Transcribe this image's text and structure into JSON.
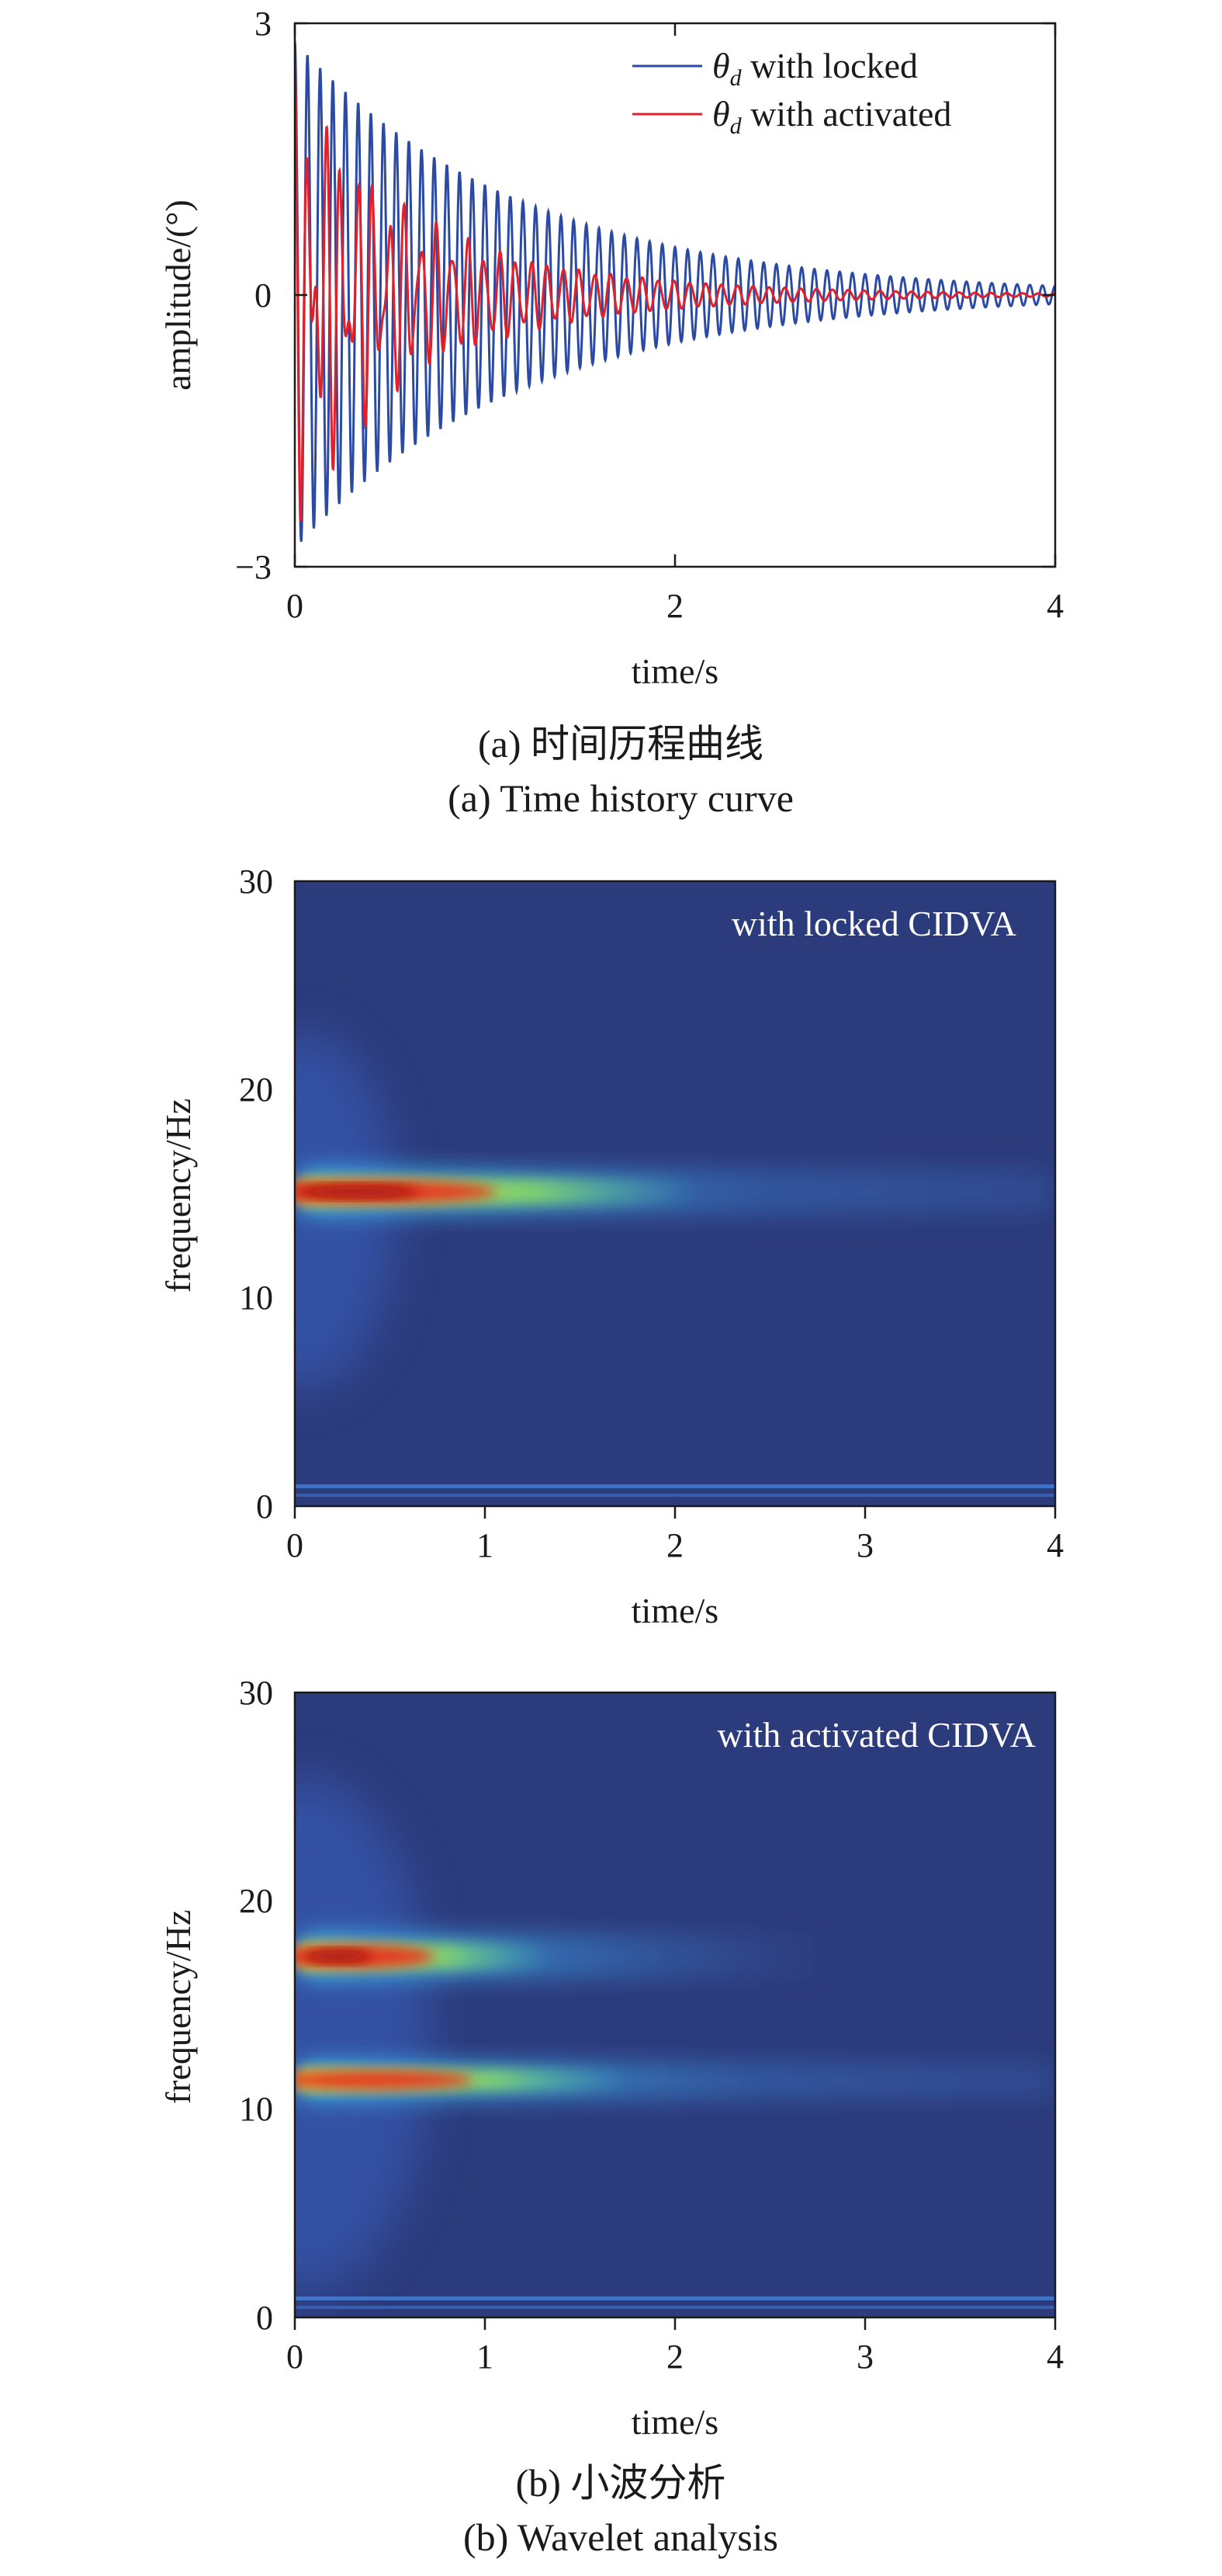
{
  "colors": {
    "locked": "#2b4aa3",
    "activated": "#e0202a",
    "heatmap_background": "#2c3b7c",
    "heatmap_colormap": "jet"
  },
  "captions": {
    "a_cn": "(a) 时间历程曲线",
    "a_en": "(a) Time history curve",
    "b_cn": "(b) 小波分析",
    "b_en": "(b) Wavelet analysis"
  },
  "chart_data": [
    {
      "type": "line",
      "xlabel": "time/s",
      "ylabel": "amplitude/(°)",
      "xlim": [
        0,
        4
      ],
      "ylim": [
        -3,
        3
      ],
      "xticks": [
        "0",
        "2",
        "4"
      ],
      "yticks": [
        "3",
        "0",
        "−3"
      ],
      "legend_position": "top-right",
      "series": [
        {
          "name": "θd with locked",
          "legend_symbol": "θ",
          "legend_sub": "d",
          "legend_text": " with locked",
          "color": "#2b4aa3",
          "frequency_hz": 15,
          "initial_amplitude_deg": 2.8,
          "final_amplitude_deg": 0.1
        },
        {
          "name": "θd with activated",
          "legend_symbol": "θ",
          "legend_sub": "d",
          "legend_text": " with activated",
          "color": "#e0202a",
          "frequency_components_hz": [
            12,
            17.5
          ],
          "initial_amplitude_deg": 2.8,
          "final_amplitude_deg": 0.05
        }
      ]
    },
    {
      "type": "heatmap",
      "label": "with locked CIDVA",
      "xlabel": "time/s",
      "ylabel": "frequency/Hz",
      "xlim": [
        0,
        4
      ],
      "ylim": [
        0,
        30
      ],
      "xticks": [
        "0",
        "1",
        "2",
        "3",
        "4"
      ],
      "yticks": [
        "30",
        "20",
        "10",
        "0"
      ],
      "ridges": [
        {
          "frequency_hz": 15,
          "peak_time_s": 0.4,
          "extends_to_s": 4
        }
      ]
    },
    {
      "type": "heatmap",
      "label": "with activated CIDVA",
      "xlabel": "time/s",
      "ylabel": "frequency/Hz",
      "xlim": [
        0,
        4
      ],
      "ylim": [
        0,
        30
      ],
      "xticks": [
        "0",
        "1",
        "2",
        "3",
        "4"
      ],
      "yticks": [
        "30",
        "20",
        "10",
        "0"
      ],
      "ridges": [
        {
          "frequency_hz": 17.5,
          "peak_time_s": 0.2,
          "extends_to_s": 2.5
        },
        {
          "frequency_hz": 12,
          "peak_time_s": 0.3,
          "extends_to_s": 4
        }
      ]
    }
  ]
}
